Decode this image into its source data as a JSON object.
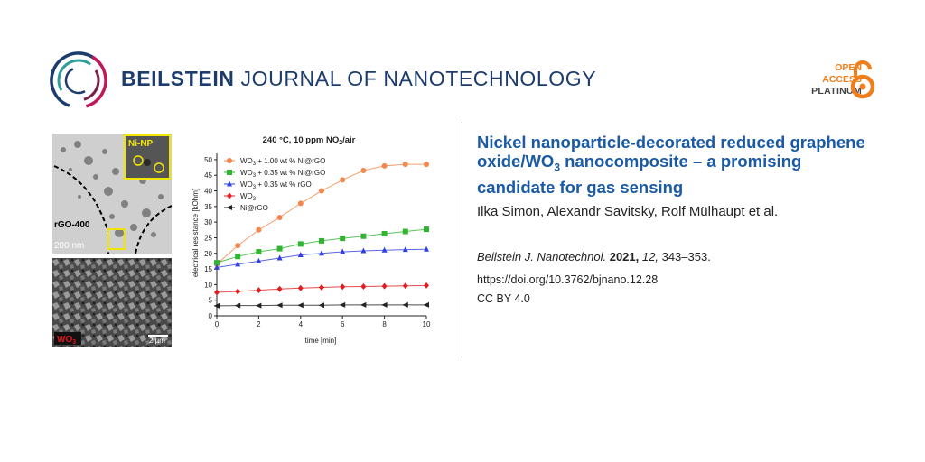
{
  "header": {
    "journal_bold": "BEILSTEIN",
    "journal_rest": "JOURNAL OF NANOTECHNOLOGY",
    "open_access": [
      "OPEN",
      "ACCESS"
    ],
    "platinum": "PLATINUM",
    "colors": {
      "navy": "#1d3c6e",
      "orange": "#f07f1a"
    }
  },
  "figure": {
    "tem": {
      "inset_label": "Ni-NP",
      "sample_label": "rGO-400",
      "scale_label": "200  nm"
    },
    "sem": {
      "sample_label": "WO3",
      "scale_label": "2 µm"
    }
  },
  "chart_data": {
    "type": "scatter",
    "title": "240 °C, 10 ppm NO2/air",
    "xlabel": "time [min]",
    "ylabel": "electrical resistance [kOhm]",
    "xlim": [
      0,
      10
    ],
    "ylim": [
      0,
      52
    ],
    "xticks": [
      0,
      2,
      4,
      6,
      8,
      10
    ],
    "yticks": [
      0,
      5,
      10,
      15,
      20,
      25,
      30,
      35,
      40,
      45,
      50
    ],
    "x": [
      0,
      1,
      2,
      3,
      4,
      5,
      6,
      7,
      8,
      9,
      10
    ],
    "series": [
      {
        "name": "WO3 + 1.00 wt % Ni@rGO",
        "color": "#f4874b",
        "marker": "circle",
        "values": [
          16.5,
          22.5,
          27.5,
          31.5,
          36,
          40,
          43.5,
          46.5,
          48,
          48.5,
          48.5
        ]
      },
      {
        "name": "WO3 + 0.35 wt % Ni@rGO",
        "color": "#2fb52f",
        "marker": "square",
        "values": [
          17,
          19,
          20.5,
          21.5,
          23,
          24,
          24.8,
          25.5,
          26.3,
          27,
          27.7
        ]
      },
      {
        "name": "WO3 + 0.35 wt % rGO",
        "color": "#2f3fe0",
        "marker": "triangle",
        "values": [
          15.5,
          16.5,
          17.5,
          18.5,
          19.5,
          20,
          20.5,
          20.8,
          21,
          21.2,
          21.3
        ]
      },
      {
        "name": "WO3",
        "color": "#e02020",
        "marker": "diamond",
        "values": [
          7.5,
          7.8,
          8.2,
          8.6,
          8.9,
          9.1,
          9.3,
          9.4,
          9.5,
          9.6,
          9.7
        ]
      },
      {
        "name": "Ni@rGO",
        "color": "#222222",
        "marker": "left-triangle",
        "values": [
          3.2,
          3.3,
          3.3,
          3.4,
          3.4,
          3.4,
          3.5,
          3.5,
          3.5,
          3.5,
          3.5
        ]
      }
    ]
  },
  "article": {
    "title": "Nickel nanoparticle-decorated reduced graphene oxide/WO3 nanocomposite – a promising candidate for gas sensing",
    "title_parts": [
      "Nickel nanoparticle-decorated reduced graphene oxide/WO",
      "3",
      " nanocomposite – a promising candidate for gas sensing"
    ],
    "authors": "Ilka Simon, Alexandr Savitsky, Rolf Mülhaupt et al.",
    "citation_journal": "Beilstein J. Nanotechnol.",
    "citation_year": "2021,",
    "citation_volume": "12,",
    "citation_pages": "343–353.",
    "doi": "https://doi.org/10.3762/bjnano.12.28",
    "license": "CC BY 4.0"
  }
}
